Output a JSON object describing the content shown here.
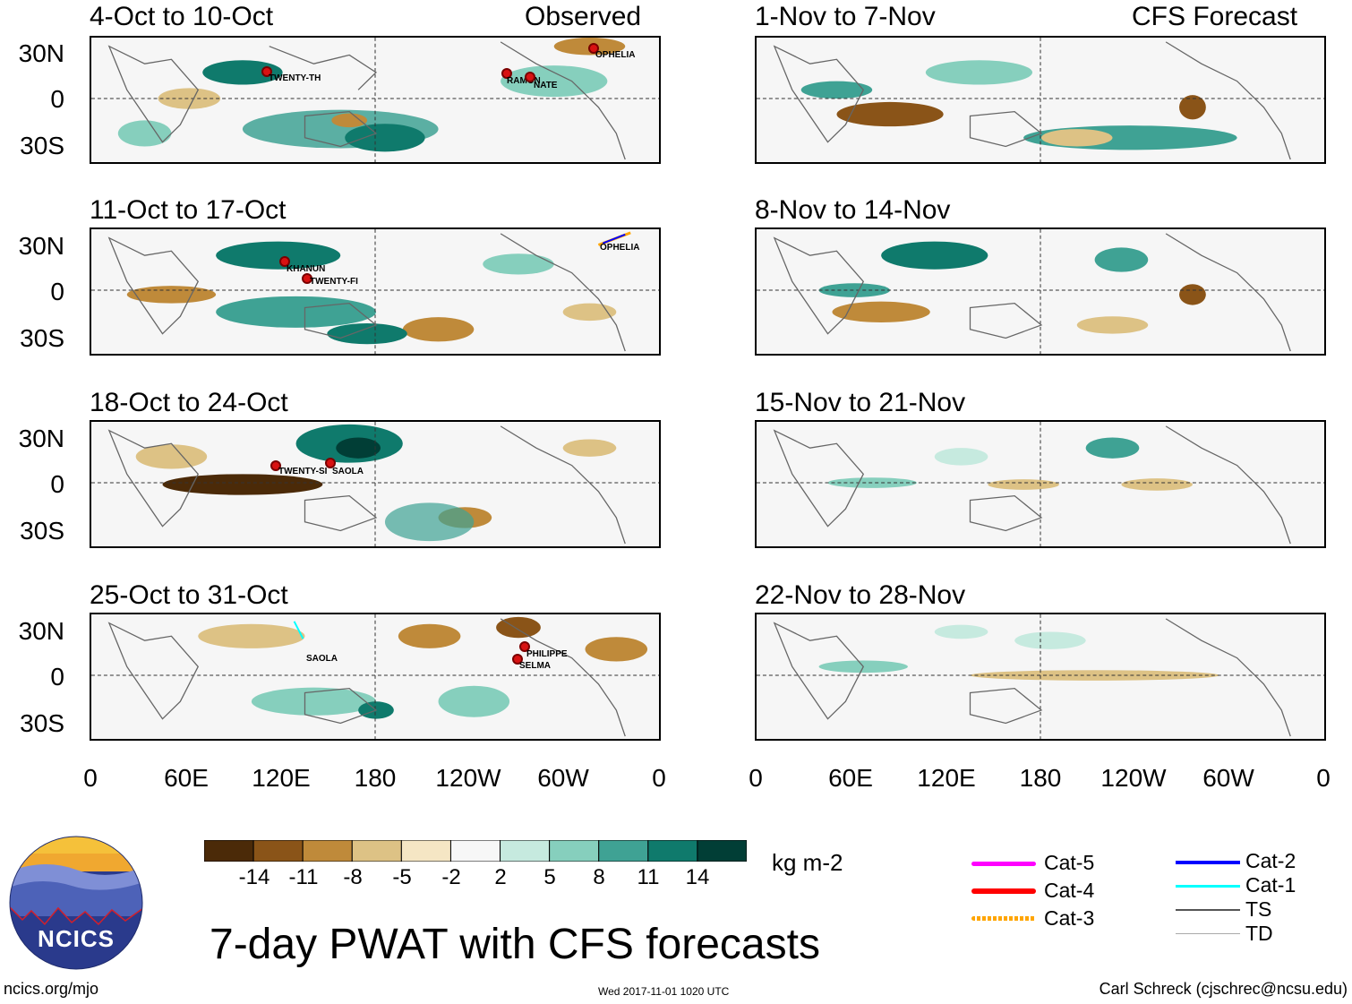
{
  "columns": {
    "left_header": "Observed",
    "right_header": "CFS Forecast"
  },
  "panels_left": [
    {
      "title": "4-Oct to 10-Oct"
    },
    {
      "title": "11-Oct to 17-Oct"
    },
    {
      "title": "18-Oct to 24-Oct"
    },
    {
      "title": "25-Oct to 31-Oct"
    }
  ],
  "panels_right": [
    {
      "title": "1-Nov to 7-Nov"
    },
    {
      "title": "8-Nov to 14-Nov"
    },
    {
      "title": "15-Nov to 21-Nov"
    },
    {
      "title": "22-Nov to 28-Nov"
    }
  ],
  "lat_labels": [
    "30N",
    "0",
    "30S"
  ],
  "lon_labels": [
    "0",
    "60E",
    "120E",
    "180",
    "120W",
    "60W",
    "0"
  ],
  "storms": {
    "p0": [
      "TWENTY-TH",
      "RAMON",
      "NATE",
      "OPHELIA"
    ],
    "p1": [
      "KHANUN",
      "TWENTY-FI",
      "OPHELIA"
    ],
    "p2": [
      "TWENTY-SI",
      "SAOLA"
    ],
    "p3": [
      "SAOLA",
      "PHILIPPE",
      "SELMA"
    ]
  },
  "colorbar": {
    "colors": [
      "#4b2a08",
      "#8a5418",
      "#bf8a3a",
      "#ddc285",
      "#f5e6c4",
      "#f7f7f7",
      "#c6eadf",
      "#86cfbd",
      "#3fa294",
      "#0f7a6c",
      "#013e36"
    ],
    "labels": [
      "-14",
      "-11",
      "-8",
      "-5",
      "-2",
      "2",
      "5",
      "8",
      "11",
      "14"
    ],
    "units": "kg m-2"
  },
  "title": "7-day PWAT with CFS forecasts",
  "logo_text": "NCICS",
  "legend": [
    {
      "label": "Cat-5",
      "color": "#ff00ff"
    },
    {
      "label": "Cat-4",
      "color": "#ff0000"
    },
    {
      "label": "Cat-3",
      "color": "#ffa500"
    },
    {
      "label": "Cat-2",
      "color": "#0000ff"
    },
    {
      "label": "Cat-1",
      "color": "#00ffff"
    },
    {
      "label": "TS",
      "color": "#555555"
    },
    {
      "label": "TD",
      "color": "#aaaaaa"
    }
  ],
  "footer": {
    "url": "ncics.org/mjo",
    "timestamp": "Wed 2017-11-01 1020 UTC",
    "credit": "Carl Schreck (cjschrec@ncsu.edu)"
  }
}
